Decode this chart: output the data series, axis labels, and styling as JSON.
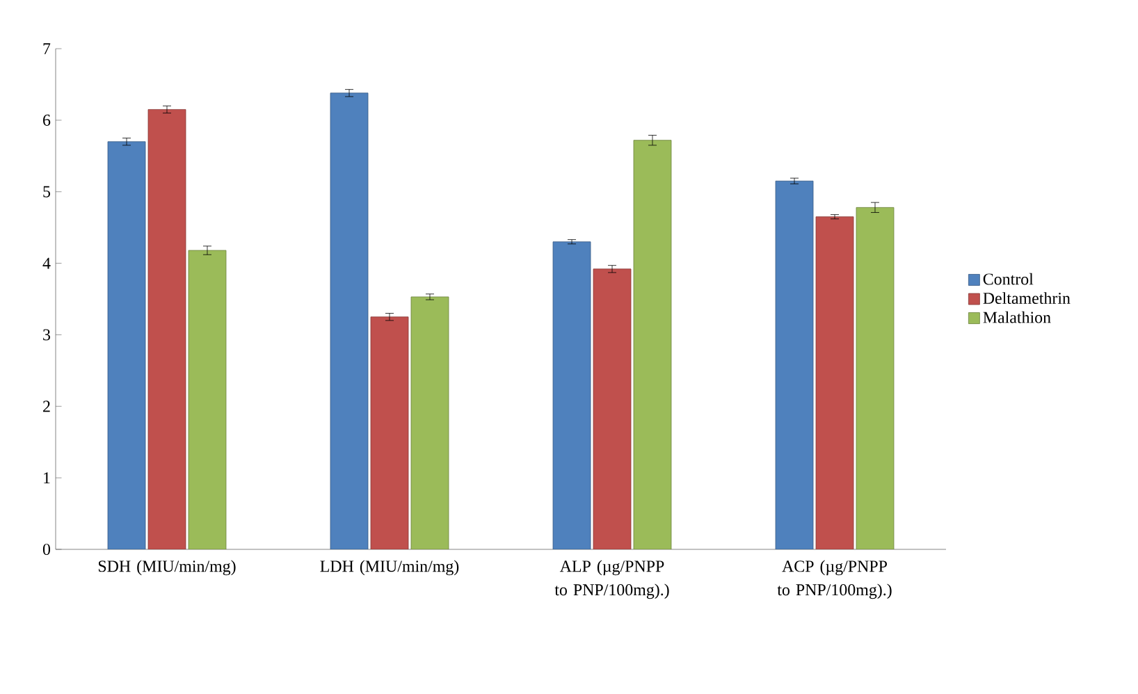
{
  "chart_data": {
    "type": "bar",
    "categories": [
      "SDH (MIU/min/mg)",
      "LDH (MIU/min/mg)",
      "ALP (µg/PNPP to PNP/100mg).)",
      "ACP (µg/PNPP to PNP/100mg).)"
    ],
    "series": [
      {
        "name": "Control",
        "color": "#4f81bd",
        "values": [
          5.7,
          6.38,
          4.3,
          5.15
        ],
        "errors": [
          0.05,
          0.05,
          0.03,
          0.04
        ]
      },
      {
        "name": "Deltamethrin",
        "color": "#c0504d",
        "values": [
          6.15,
          3.25,
          3.92,
          4.65
        ],
        "errors": [
          0.05,
          0.05,
          0.05,
          0.03
        ]
      },
      {
        "name": "Malathion",
        "color": "#9bbb59",
        "values": [
          4.18,
          3.53,
          5.72,
          4.78
        ],
        "errors": [
          0.06,
          0.04,
          0.07,
          0.07
        ]
      }
    ],
    "ylim": [
      0,
      7
    ],
    "yticks": [
      0,
      1,
      2,
      3,
      4,
      5,
      6,
      7
    ],
    "grid": false,
    "legend": "right"
  }
}
